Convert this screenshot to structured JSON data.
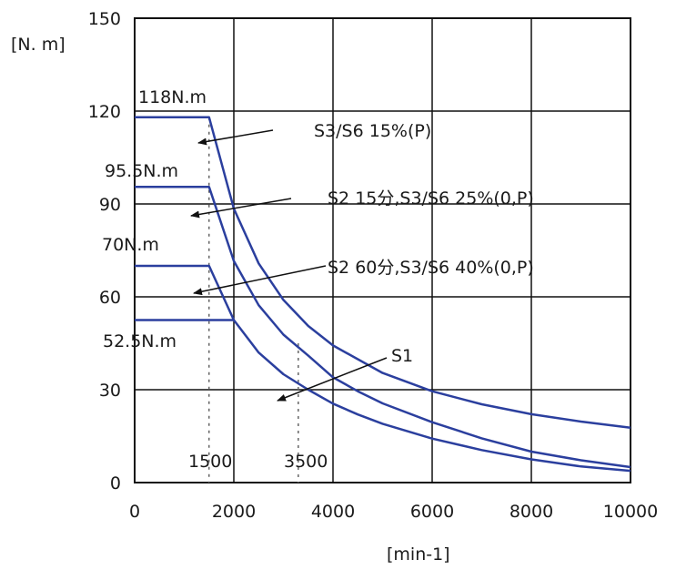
{
  "chart_data": {
    "type": "line",
    "xlabel": "[min-1]",
    "ylabel": "[N. m]",
    "xlim": [
      0,
      10000
    ],
    "ylim": [
      0,
      150
    ],
    "grid": true,
    "x_ticks": [
      {
        "value": 0,
        "label": "0"
      },
      {
        "value": 2000,
        "label": "2000"
      },
      {
        "value": 4000,
        "label": "4000"
      },
      {
        "value": 6000,
        "label": "6000"
      },
      {
        "value": 8000,
        "label": "8000"
      },
      {
        "value": 10000,
        "label": "10000"
      }
    ],
    "y_ticks": [
      {
        "value": 0,
        "label": "0"
      },
      {
        "value": 30,
        "label": "30"
      },
      {
        "value": 60,
        "label": "60"
      },
      {
        "value": 90,
        "label": "90"
      },
      {
        "value": 120,
        "label": "120"
      },
      {
        "value": 150,
        "label": "150"
      }
    ],
    "series": [
      {
        "name": "S3/S6 15%(P)",
        "color": "#2b3f9e",
        "x": [
          0,
          1500,
          2000,
          2500,
          3000,
          3500,
          4000,
          5000,
          6000,
          7000,
          8000,
          9000,
          10000
        ],
        "y": [
          118,
          118,
          88.5,
          70.8,
          59,
          50.6,
          44.3,
          35.4,
          29.5,
          25.3,
          22.1,
          19.7,
          17.7
        ]
      },
      {
        "name": "S2 15分,S3/S6 25%(0,P)",
        "color": "#2b3f9e",
        "x": [
          0,
          1500,
          2000,
          2500,
          3000,
          3500,
          4000,
          4500,
          5000,
          6000,
          7000,
          8000,
          9000,
          10000
        ],
        "y": [
          95.5,
          95.5,
          71.6,
          57.3,
          47.8,
          41,
          34,
          29.5,
          25.6,
          19.5,
          14.3,
          10,
          7.2,
          5
        ]
      },
      {
        "name": "S2 60分,S3/S6 40%(0,P)",
        "color": "#2b3f9e",
        "x": [
          0,
          1500,
          2000,
          2500,
          3000,
          3500,
          4000,
          4500,
          5000,
          6000,
          7000,
          8000,
          9000,
          10000
        ],
        "y": [
          70,
          70,
          52.5,
          42,
          35,
          30,
          25.5,
          22,
          19,
          14.2,
          10.5,
          7.5,
          5.2,
          3.8
        ]
      },
      {
        "name": "S1",
        "color": "#2b3f9e",
        "x": [
          0,
          2000
        ],
        "y": [
          52.5,
          52.5
        ]
      }
    ],
    "annotations": [
      {
        "text": "118N.m"
      },
      {
        "text": "95.5N.m"
      },
      {
        "text": "70N.m"
      },
      {
        "text": "52.5N.m"
      },
      {
        "text": "1500"
      },
      {
        "text": "3500"
      }
    ]
  }
}
